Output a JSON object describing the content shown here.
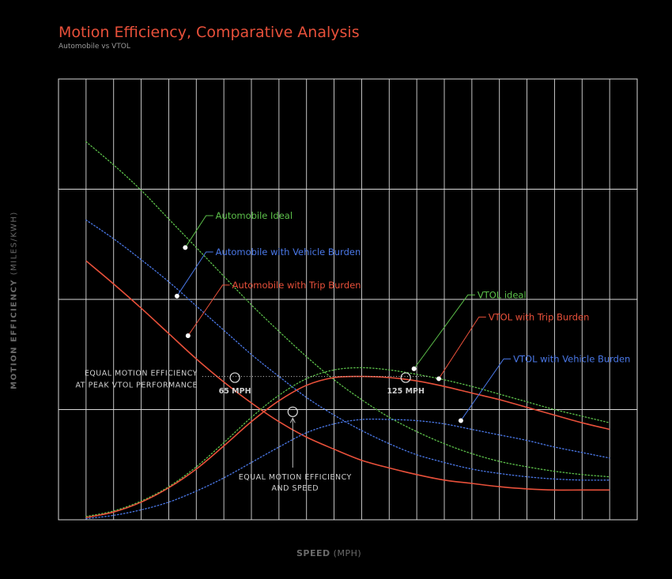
{
  "title": "Motion Efficiency, Comparative Analysis",
  "subtitle": "Automobile vs VTOL",
  "colors": {
    "background": "#000000",
    "grid": "#d9d9d9",
    "automobile_ideal": "#5cc04a",
    "vehicle_burden": "#4a78e8",
    "trip_burden": "#e8503a",
    "annotation": "#cccccc"
  },
  "chart_data": {
    "type": "line",
    "xlabel": "SPEED",
    "xlabel_unit": "(MPH)",
    "ylabel": "MOTION EFFICIENCY",
    "ylabel_unit": "(MILES/KWH)",
    "x": [
      0,
      10,
      20,
      30,
      40,
      50,
      60,
      70,
      80,
      90,
      100,
      110,
      120,
      130,
      140,
      150,
      160,
      170,
      180,
      190
    ],
    "xlim": [
      -10,
      200
    ],
    "ylim": [
      0,
      4
    ],
    "grid": true,
    "series": [
      {
        "name": "Automobile Ideal",
        "color": "#5cc04a",
        "style": "dotted",
        "values": [
          3.43,
          3.22,
          2.99,
          2.73,
          2.47,
          2.21,
          1.95,
          1.71,
          1.48,
          1.27,
          1.09,
          0.93,
          0.8,
          0.69,
          0.6,
          0.53,
          0.48,
          0.44,
          0.41,
          0.39
        ]
      },
      {
        "name": "Automobile with Vehicle Burden",
        "color": "#4a78e8",
        "style": "dotted",
        "values": [
          2.72,
          2.55,
          2.36,
          2.16,
          1.94,
          1.72,
          1.5,
          1.3,
          1.11,
          0.95,
          0.81,
          0.69,
          0.59,
          0.52,
          0.46,
          0.42,
          0.39,
          0.37,
          0.36,
          0.36
        ]
      },
      {
        "name": "Automobile with Trip Burden",
        "color": "#e8503a",
        "style": "solid",
        "values": [
          2.35,
          2.14,
          1.92,
          1.69,
          1.46,
          1.25,
          1.06,
          0.89,
          0.75,
          0.64,
          0.54,
          0.47,
          0.41,
          0.36,
          0.33,
          0.3,
          0.28,
          0.27,
          0.27,
          0.27
        ]
      },
      {
        "name": "VTOL Ideal",
        "color": "#5cc04a",
        "style": "dotted",
        "values": [
          0.03,
          0.08,
          0.17,
          0.3,
          0.48,
          0.7,
          0.93,
          1.13,
          1.28,
          1.36,
          1.38,
          1.36,
          1.32,
          1.27,
          1.21,
          1.14,
          1.07,
          1.0,
          0.94,
          0.88
        ]
      },
      {
        "name": "VTOL with Trip Burden",
        "color": "#e8503a",
        "style": "solid",
        "values": [
          0.02,
          0.07,
          0.16,
          0.29,
          0.46,
          0.67,
          0.89,
          1.08,
          1.22,
          1.29,
          1.3,
          1.29,
          1.26,
          1.21,
          1.15,
          1.09,
          1.02,
          0.95,
          0.88,
          0.82
        ]
      },
      {
        "name": "VTOL with Vehicle Burden",
        "color": "#4a78e8",
        "style": "dotted",
        "values": [
          0.01,
          0.04,
          0.09,
          0.16,
          0.26,
          0.38,
          0.52,
          0.66,
          0.79,
          0.87,
          0.91,
          0.91,
          0.9,
          0.87,
          0.82,
          0.77,
          0.72,
          0.66,
          0.61,
          0.56
        ]
      }
    ],
    "callouts": [
      {
        "label": "Automobile Ideal",
        "color": "#5cc04a",
        "x": 36,
        "y": 2.47,
        "label_x": 47,
        "label_y": 2.76
      },
      {
        "label": "Automobile with Vehicle Burden",
        "color": "#4a78e8",
        "x": 33,
        "y": 2.03,
        "label_x": 47,
        "label_y": 2.43
      },
      {
        "label": "Automobile with Trip Burden",
        "color": "#e8503a",
        "x": 37,
        "y": 1.67,
        "label_x": 53,
        "label_y": 2.13
      },
      {
        "label": "VTOL ideal",
        "color": "#5cc04a",
        "x": 119,
        "y": 1.37,
        "label_x": 142,
        "label_y": 2.04
      },
      {
        "label": "VTOL with Trip Burden",
        "color": "#e8503a",
        "x": 128,
        "y": 1.28,
        "label_x": 146,
        "label_y": 1.84
      },
      {
        "label": "VTOL with Vehicle Burden",
        "color": "#4a78e8",
        "x": 136,
        "y": 0.9,
        "label_x": 155,
        "label_y": 1.46
      }
    ],
    "annotations": {
      "peak_label_line1": "EQUAL MOTION EFFICIENCY",
      "peak_label_line2": "AT PEAK VTOL PERFORMANCE",
      "peak_y": 1.3,
      "markers": [
        {
          "label": "65 MPH",
          "x": 54,
          "y": 1.29
        },
        {
          "label": "125 MPH",
          "x": 116,
          "y": 1.29
        }
      ],
      "cross_point": {
        "x": 75,
        "y": 0.98
      },
      "cross_label_line1": "EQUAL MOTION EFFICIENCY",
      "cross_label_line2": "AND SPEED"
    }
  }
}
